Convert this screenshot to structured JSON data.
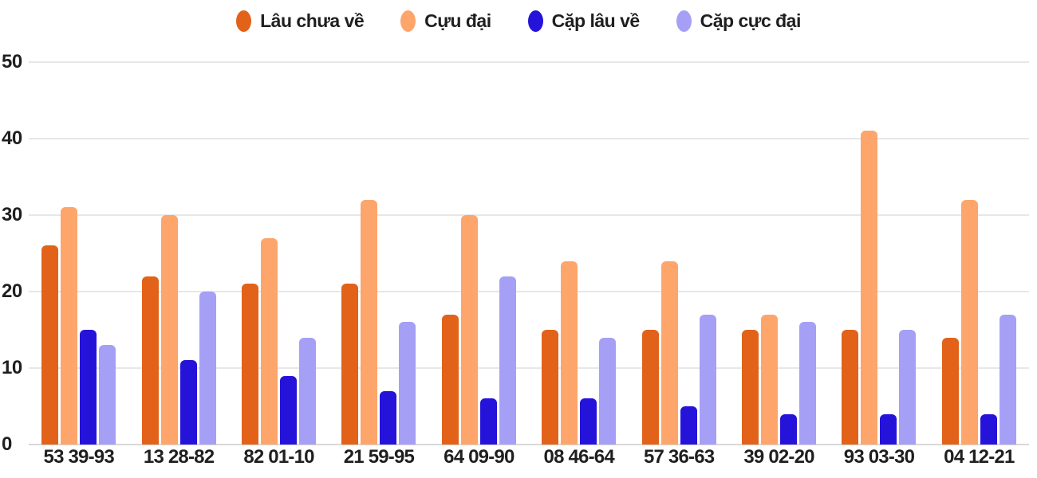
{
  "chart_data": {
    "type": "bar",
    "title": "",
    "xlabel": "",
    "ylabel": "",
    "categories": [
      "53 39-93",
      "13 28-82",
      "82 01-10",
      "21 59-95",
      "64 09-90",
      "08 46-64",
      "57 36-63",
      "39 02-20",
      "93 03-30",
      "04 12-21"
    ],
    "series": [
      {
        "name": "Lâu chưa về",
        "color": "#e2621a",
        "values": [
          26,
          22,
          21,
          21,
          17,
          15,
          15,
          15,
          15,
          14
        ]
      },
      {
        "name": "Cựu đại",
        "color": "#fda56b",
        "values": [
          31,
          30,
          27,
          32,
          30,
          24,
          24,
          17,
          41,
          32
        ]
      },
      {
        "name": "Cặp lâu về",
        "color": "#2613da",
        "values": [
          15,
          11,
          9,
          7,
          6,
          6,
          5,
          4,
          4,
          4
        ]
      },
      {
        "name": "Cặp cực đại",
        "color": "#a5a0f6",
        "values": [
          13,
          20,
          14,
          16,
          22,
          14,
          17,
          16,
          15,
          17
        ]
      }
    ],
    "ylim": [
      0,
      50
    ],
    "yticks": [
      0,
      10,
      20,
      30,
      40,
      50
    ],
    "grid": true,
    "legend_position": "top",
    "colors": {
      "text": "#1f1f1f",
      "gridline": "#e7e7e7",
      "baseline": "#d9d9d9",
      "background": "#ffffff"
    }
  }
}
